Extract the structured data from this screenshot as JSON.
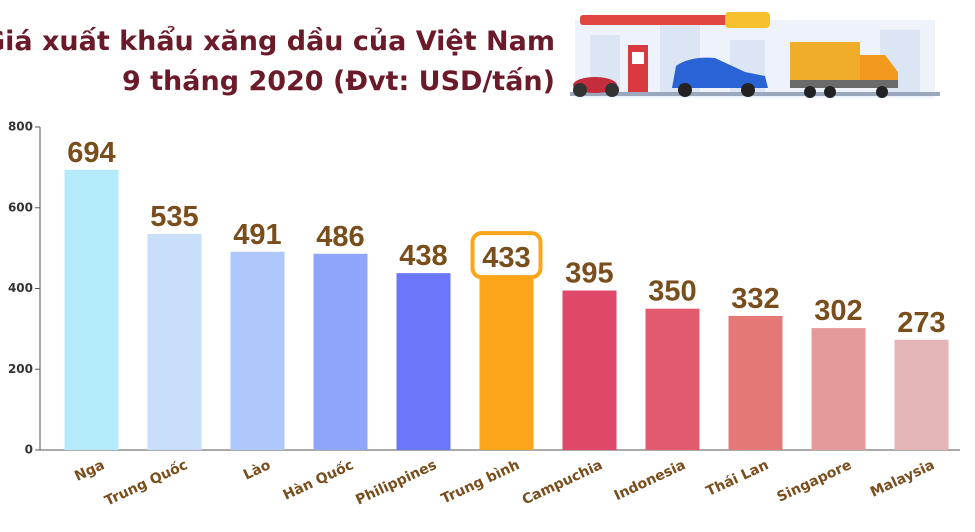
{
  "chart_data": {
    "type": "bar",
    "title": "Giá xuất khẩu xăng dầu của Việt Nam",
    "subtitle": "9 tháng 2020 (Đvt: USD/tấn)",
    "categories": [
      "Nga",
      "Trung Quốc",
      "Lào",
      "Hàn Quốc",
      "Philippines",
      "Trung bình",
      "Campuchia",
      "Indonesia",
      "Thái Lan",
      "Singapore",
      "Malaysia"
    ],
    "values": [
      694,
      535,
      491,
      486,
      438,
      433,
      395,
      350,
      332,
      302,
      273
    ],
    "colors": [
      "#b3ebfb",
      "#c7dffb",
      "#afc8fb",
      "#8fa4fb",
      "#6a77fb",
      "#fda51a",
      "#df4869",
      "#e15a6d",
      "#e47876",
      "#e49a98",
      "#e4b6b8"
    ],
    "ylim": [
      0,
      800
    ],
    "yticks": [
      0,
      200,
      400,
      600,
      800
    ],
    "grid": false
  }
}
